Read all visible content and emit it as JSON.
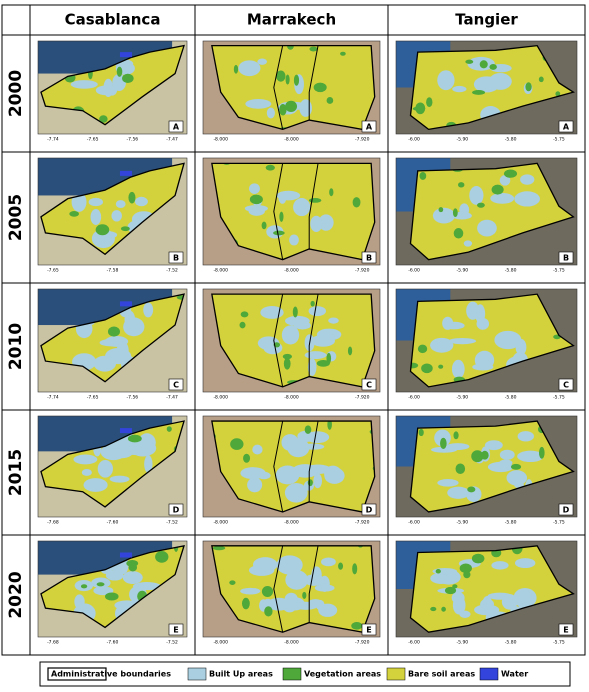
{
  "header": {
    "columns": [
      "Casablanca",
      "Marrakech",
      "Tangier"
    ]
  },
  "rows": [
    {
      "year": "2000",
      "cells": [
        {
          "letter": "A",
          "xticks": [
            "-7.74",
            "-7.65",
            "-7.56",
            "-7.47"
          ]
        },
        {
          "letter": "A",
          "xticks": [
            "-8.000",
            "-8.000",
            "-7.920"
          ]
        },
        {
          "letter": "A",
          "xticks": [
            "-6.00",
            "-5.90",
            "-5.80",
            "-5.75"
          ]
        }
      ]
    },
    {
      "year": "2005",
      "cells": [
        {
          "letter": "B",
          "xticks": [
            "-7.65",
            "-7.58",
            "-7.52"
          ]
        },
        {
          "letter": "B",
          "xticks": [
            "-8.000",
            "-8.000",
            "-7.920"
          ]
        },
        {
          "letter": "B",
          "xticks": [
            "-6.00",
            "-5.90",
            "-5.80",
            "-5.75"
          ]
        }
      ]
    },
    {
      "year": "2010",
      "cells": [
        {
          "letter": "C",
          "xticks": [
            "-7.74",
            "-7.65",
            "-7.56",
            "-7.47"
          ]
        },
        {
          "letter": "C",
          "xticks": [
            "-8.000",
            "-8.000",
            "-7.920"
          ]
        },
        {
          "letter": "C",
          "xticks": [
            "-6.00",
            "-5.90",
            "-5.80",
            "-5.75"
          ]
        }
      ]
    },
    {
      "year": "2015",
      "cells": [
        {
          "letter": "D",
          "xticks": [
            "-7.68",
            "-7.60",
            "-7.52"
          ]
        },
        {
          "letter": "D",
          "xticks": [
            "-8.000",
            "-8.000",
            "-7.920"
          ]
        },
        {
          "letter": "D",
          "xticks": [
            "-6.00",
            "-5.90",
            "-5.80",
            "-5.75"
          ]
        }
      ]
    },
    {
      "year": "2020",
      "cells": [
        {
          "letter": "E",
          "xticks": [
            "-7.68",
            "-7.60",
            "-7.52"
          ]
        },
        {
          "letter": "E",
          "xticks": [
            "-8.000",
            "-8.000",
            "-7.920"
          ]
        },
        {
          "letter": "E",
          "xticks": [
            "-6.00",
            "-5.90",
            "-5.80",
            "-5.75"
          ]
        }
      ]
    }
  ],
  "legend": [
    "Administrative boundaries",
    "Built Up areas",
    "Vegetation areas",
    "Bare soil areas",
    "Water"
  ]
}
